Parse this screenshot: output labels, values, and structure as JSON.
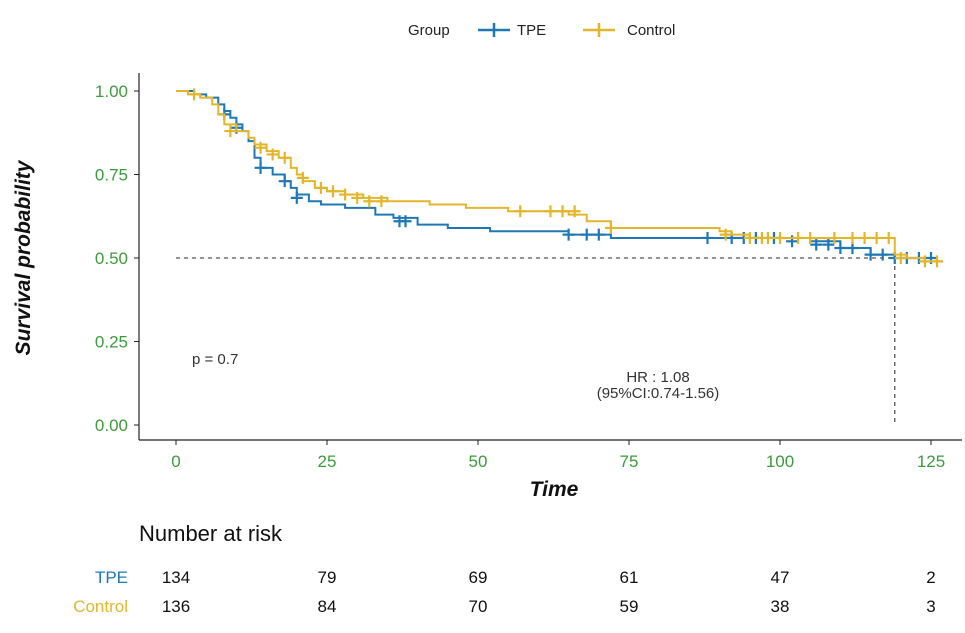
{
  "chart_data": {
    "type": "line",
    "subtype": "kaplan-meier",
    "legend": {
      "title": "Group",
      "entries": [
        {
          "name": "TPE",
          "color": "#1f78b4"
        },
        {
          "name": "Control",
          "color": "#e2b62b"
        }
      ],
      "position": "top"
    },
    "xlabel": "Time",
    "ylabel": "Survival probability",
    "xlim": [
      0,
      128
    ],
    "ylim": [
      0,
      1.05
    ],
    "xticks": [
      0,
      25,
      50,
      75,
      100,
      125
    ],
    "xtick_labels": [
      "0",
      "25",
      "50",
      "75",
      "100",
      "125"
    ],
    "yticks": [
      0,
      0.25,
      0.5,
      0.75,
      1.0
    ],
    "ytick_labels": [
      "0.00",
      "0.25",
      "0.50",
      "0.75",
      "1.00"
    ],
    "tick_color": "#3e9a3e",
    "median_line": {
      "y": 0.5,
      "x": 119
    },
    "series": [
      {
        "name": "TPE",
        "color": "#1f78b4",
        "steps": [
          [
            0,
            1.0
          ],
          [
            3,
            0.99
          ],
          [
            5,
            0.98
          ],
          [
            7,
            0.96
          ],
          [
            8,
            0.94
          ],
          [
            9,
            0.92
          ],
          [
            10,
            0.9
          ],
          [
            11,
            0.88
          ],
          [
            12,
            0.85
          ],
          [
            13,
            0.8
          ],
          [
            14,
            0.77
          ],
          [
            16,
            0.75
          ],
          [
            18,
            0.73
          ],
          [
            19,
            0.71
          ],
          [
            20,
            0.69
          ],
          [
            22,
            0.67
          ],
          [
            24,
            0.66
          ],
          [
            28,
            0.65
          ],
          [
            33,
            0.63
          ],
          [
            36,
            0.62
          ],
          [
            40,
            0.6
          ],
          [
            45,
            0.59
          ],
          [
            52,
            0.58
          ],
          [
            60,
            0.58
          ],
          [
            65,
            0.57
          ],
          [
            72,
            0.56
          ],
          [
            105,
            0.55
          ],
          [
            110,
            0.53
          ],
          [
            115,
            0.51
          ],
          [
            119,
            0.5
          ],
          [
            126,
            0.5
          ]
        ],
        "censors": [
          [
            8,
            0.93
          ],
          [
            10,
            0.89
          ],
          [
            14,
            0.77
          ],
          [
            18,
            0.73
          ],
          [
            20,
            0.68
          ],
          [
            37,
            0.61
          ],
          [
            38,
            0.61
          ],
          [
            65,
            0.57
          ],
          [
            68,
            0.57
          ],
          [
            70,
            0.57
          ],
          [
            88,
            0.56
          ],
          [
            92,
            0.56
          ],
          [
            94,
            0.56
          ],
          [
            96,
            0.56
          ],
          [
            99,
            0.56
          ],
          [
            102,
            0.55
          ],
          [
            106,
            0.54
          ],
          [
            108,
            0.54
          ],
          [
            110,
            0.53
          ],
          [
            112,
            0.53
          ],
          [
            115,
            0.51
          ],
          [
            117,
            0.51
          ],
          [
            119,
            0.5
          ],
          [
            121,
            0.5
          ],
          [
            123,
            0.5
          ],
          [
            125,
            0.5
          ]
        ]
      },
      {
        "name": "Control",
        "color": "#e2b62b",
        "steps": [
          [
            0,
            1.0
          ],
          [
            2,
            0.99
          ],
          [
            4,
            0.98
          ],
          [
            6,
            0.96
          ],
          [
            7,
            0.93
          ],
          [
            8,
            0.9
          ],
          [
            10,
            0.88
          ],
          [
            12,
            0.86
          ],
          [
            13,
            0.84
          ],
          [
            15,
            0.82
          ],
          [
            17,
            0.8
          ],
          [
            19,
            0.77
          ],
          [
            20,
            0.75
          ],
          [
            21,
            0.73
          ],
          [
            23,
            0.71
          ],
          [
            25,
            0.7
          ],
          [
            28,
            0.69
          ],
          [
            31,
            0.68
          ],
          [
            35,
            0.67
          ],
          [
            42,
            0.66
          ],
          [
            48,
            0.65
          ],
          [
            55,
            0.64
          ],
          [
            65,
            0.63
          ],
          [
            68,
            0.61
          ],
          [
            72,
            0.59
          ],
          [
            90,
            0.58
          ],
          [
            92,
            0.57
          ],
          [
            95,
            0.56
          ],
          [
            100,
            0.56
          ],
          [
            110,
            0.56
          ],
          [
            118,
            0.56
          ],
          [
            119,
            0.51
          ],
          [
            121,
            0.5
          ],
          [
            124,
            0.49
          ],
          [
            127,
            0.49
          ]
        ],
        "censors": [
          [
            3,
            0.99
          ],
          [
            9,
            0.88
          ],
          [
            14,
            0.83
          ],
          [
            16,
            0.81
          ],
          [
            18,
            0.8
          ],
          [
            21,
            0.74
          ],
          [
            24,
            0.71
          ],
          [
            26,
            0.7
          ],
          [
            28,
            0.69
          ],
          [
            30,
            0.68
          ],
          [
            32,
            0.67
          ],
          [
            34,
            0.67
          ],
          [
            57,
            0.64
          ],
          [
            62,
            0.64
          ],
          [
            64,
            0.64
          ],
          [
            66,
            0.64
          ],
          [
            72,
            0.59
          ],
          [
            91,
            0.57
          ],
          [
            95,
            0.56
          ],
          [
            97,
            0.56
          ],
          [
            98,
            0.56
          ],
          [
            100,
            0.56
          ],
          [
            103,
            0.56
          ],
          [
            105,
            0.56
          ],
          [
            109,
            0.56
          ],
          [
            112,
            0.56
          ],
          [
            114,
            0.56
          ],
          [
            116,
            0.56
          ],
          [
            118,
            0.56
          ],
          [
            120,
            0.5
          ],
          [
            124,
            0.49
          ],
          [
            126,
            0.49
          ]
        ]
      }
    ],
    "annotations": {
      "p_value": "p = 0.7",
      "hr": "HR : 1.08",
      "ci": "(95%CI:0.74-1.56)"
    },
    "risk_table": {
      "title": "Number at risk",
      "times": [
        0,
        25,
        50,
        75,
        100,
        125
      ],
      "rows": [
        {
          "label": "TPE",
          "color": "#1f78b4",
          "values": [
            "134",
            "79",
            "69",
            "61",
            "47",
            "2"
          ]
        },
        {
          "label": "Control",
          "color": "#e2b62b",
          "values": [
            "136",
            "84",
            "70",
            "59",
            "38",
            "3"
          ]
        }
      ]
    }
  }
}
